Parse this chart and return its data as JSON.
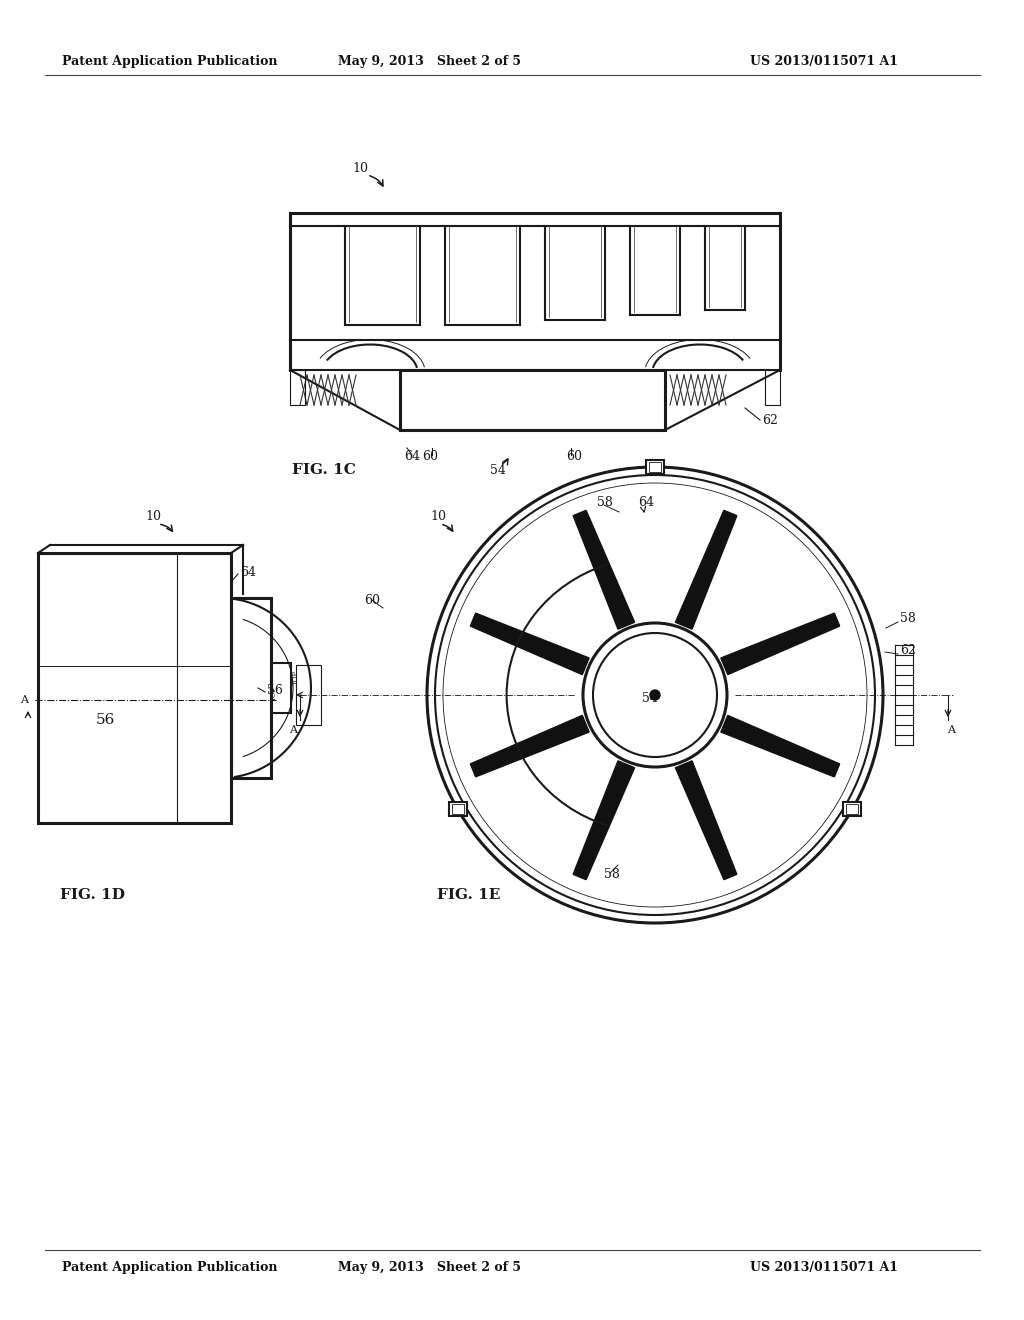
{
  "bg_color": "#ffffff",
  "header_left": "Patent Application Publication",
  "header_center": "May 9, 2013   Sheet 2 of 5",
  "header_right": "US 2013/0115071 A1",
  "fig1c_label": "FIG. 1C",
  "fig1d_label": "FIG. 1D",
  "fig1e_label": "FIG. 1E",
  "lc": "#1a1a1a",
  "lw": 1.5,
  "lw2": 2.2,
  "lw3": 3.0
}
